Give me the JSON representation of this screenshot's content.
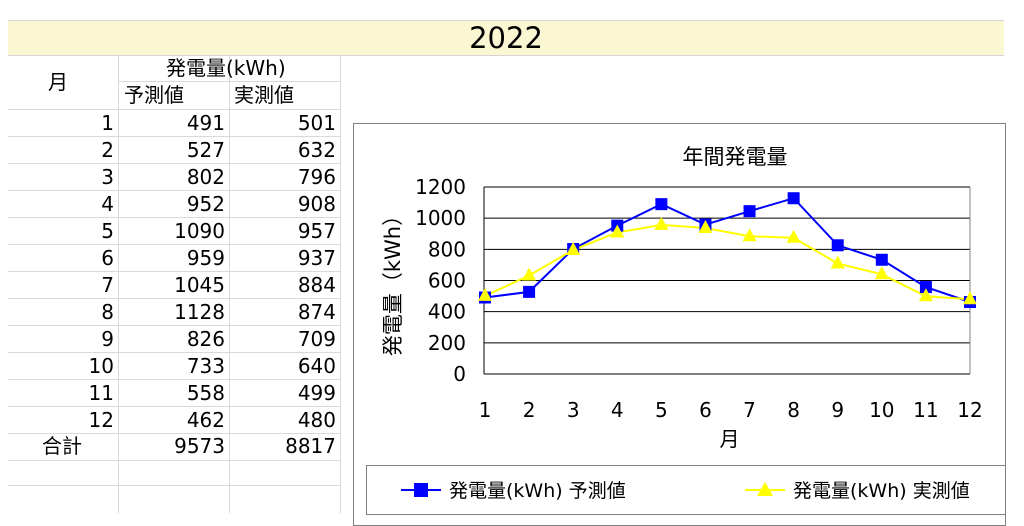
{
  "page_title": "2022",
  "table": {
    "header_month": "月",
    "header_group": "発電量(kWh)",
    "header_forecast": "予測値",
    "header_actual": "実測値",
    "rows": [
      {
        "month": "1",
        "forecast": "491",
        "actual": "501"
      },
      {
        "month": "2",
        "forecast": "527",
        "actual": "632"
      },
      {
        "month": "3",
        "forecast": "802",
        "actual": "796"
      },
      {
        "month": "4",
        "forecast": "952",
        "actual": "908"
      },
      {
        "month": "5",
        "forecast": "1090",
        "actual": "957"
      },
      {
        "month": "6",
        "forecast": "959",
        "actual": "937"
      },
      {
        "month": "7",
        "forecast": "1045",
        "actual": "884"
      },
      {
        "month": "8",
        "forecast": "1128",
        "actual": "874"
      },
      {
        "month": "9",
        "forecast": "826",
        "actual": "709"
      },
      {
        "month": "10",
        "forecast": "733",
        "actual": "640"
      },
      {
        "month": "11",
        "forecast": "558",
        "actual": "499"
      },
      {
        "month": "12",
        "forecast": "462",
        "actual": "480"
      }
    ],
    "total": {
      "label": "合計",
      "forecast": "9573",
      "actual": "8817"
    }
  },
  "chart_data": {
    "type": "line",
    "title": "年間発電量",
    "xlabel": "月",
    "ylabel": "発電量（kWh）",
    "categories": [
      "1",
      "2",
      "3",
      "4",
      "5",
      "6",
      "7",
      "8",
      "9",
      "10",
      "11",
      "12"
    ],
    "ylim": [
      0,
      1200
    ],
    "yticks": [
      0,
      200,
      400,
      600,
      800,
      1000,
      1200
    ],
    "grid": true,
    "legend_position": "bottom",
    "series": [
      {
        "name": "発電量(kWh) 予測値",
        "color": "#0000ff",
        "marker": "square",
        "values": [
          491,
          527,
          802,
          952,
          1090,
          959,
          1045,
          1128,
          826,
          733,
          558,
          462
        ]
      },
      {
        "name": "発電量(kWh) 実測値",
        "color": "#ffff00",
        "marker": "triangle",
        "values": [
          501,
          632,
          796,
          908,
          957,
          937,
          884,
          874,
          709,
          640,
          499,
          480
        ]
      }
    ]
  }
}
